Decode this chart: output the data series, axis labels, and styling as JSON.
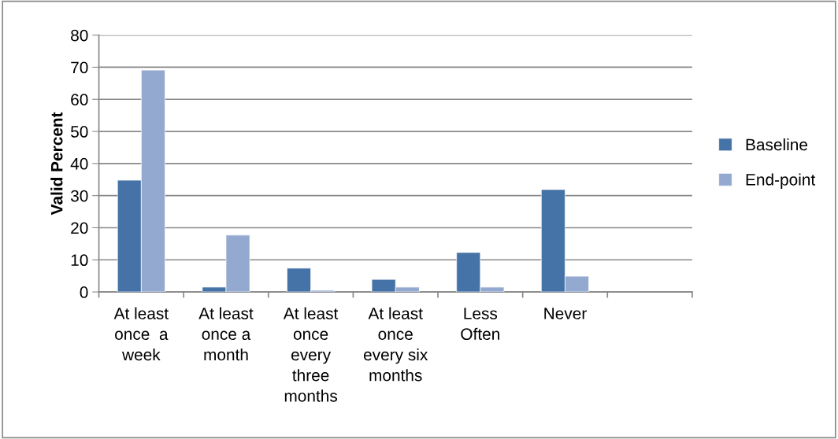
{
  "chart_data": {
    "type": "bar",
    "ylabel": "Valid Percent",
    "categories": [
      "At least\nonce  a\nweek",
      "At least\nonce a\nmonth",
      "At least\nonce\nevery\nthree\nmonths",
      "At least\nonce\nevery six\nmonths",
      "Less\nOften",
      "Never",
      null
    ],
    "series": [
      {
        "name": "Baseline",
        "color": "#4573a7",
        "values": [
          34.8,
          1.5,
          7.4,
          3.9,
          12.3,
          31.9,
          null
        ]
      },
      {
        "name": "End-point",
        "color": "#94a9cf",
        "values": [
          69.1,
          17.7,
          0.5,
          1.5,
          1.5,
          4.9,
          null
        ]
      }
    ],
    "ylim": [
      0,
      80
    ],
    "yticks": [
      0,
      10,
      20,
      30,
      40,
      50,
      60,
      70,
      80
    ],
    "grid": "y",
    "legend": "right"
  }
}
